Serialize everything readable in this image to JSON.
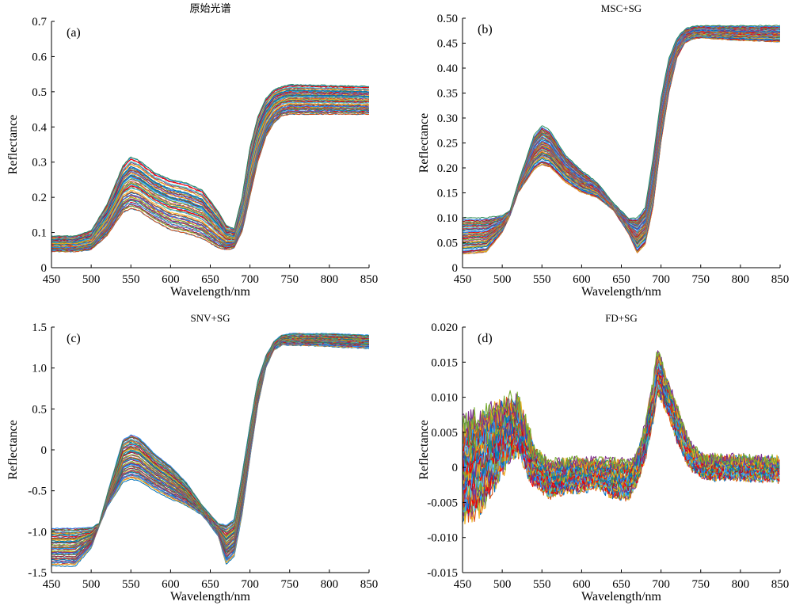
{
  "palette": [
    "#0072BD",
    "#D95319",
    "#EDB120",
    "#7E2F8E",
    "#77AC30",
    "#4DBEEE",
    "#A2142F",
    "#FF0000",
    "#1E90FF",
    "#2E8B57"
  ],
  "chart_data": [
    {
      "type": "line",
      "title": "原始光谱",
      "label": "(a)",
      "xlabel": "Wavelength/nm",
      "ylabel": "Reflectance",
      "xlim": [
        450,
        850
      ],
      "ylim": [
        0,
        0.7
      ],
      "xticks": [
        "450",
        "500",
        "550",
        "600",
        "650",
        "700",
        "750",
        "800",
        "850"
      ],
      "yticks": [
        "0",
        "0.1",
        "0.2",
        "0.3",
        "0.4",
        "0.5",
        "0.6",
        "0.7"
      ],
      "series_count": 60,
      "noise": 0.0015,
      "envelope": {
        "x": [
          450,
          480,
          500,
          520,
          540,
          550,
          560,
          580,
          600,
          620,
          640,
          660,
          670,
          680,
          690,
          700,
          710,
          720,
          730,
          740,
          750,
          800,
          850
        ],
        "low": [
          0.045,
          0.045,
          0.05,
          0.09,
          0.155,
          0.165,
          0.16,
          0.13,
          0.105,
          0.095,
          0.08,
          0.055,
          0.05,
          0.055,
          0.1,
          0.2,
          0.3,
          0.37,
          0.41,
          0.43,
          0.435,
          0.435,
          0.435
        ],
        "high": [
          0.09,
          0.09,
          0.105,
          0.18,
          0.29,
          0.315,
          0.305,
          0.27,
          0.25,
          0.24,
          0.22,
          0.16,
          0.12,
          0.11,
          0.2,
          0.34,
          0.43,
          0.48,
          0.505,
          0.515,
          0.52,
          0.518,
          0.515
        ]
      }
    },
    {
      "type": "line",
      "title": "MSC+SG",
      "label": "(b)",
      "xlabel": "Wavelength/nm",
      "ylabel": "Reflectance",
      "xlim": [
        450,
        850
      ],
      "ylim": [
        0,
        0.5
      ],
      "xticks": [
        "450",
        "500",
        "550",
        "600",
        "650",
        "700",
        "750",
        "800",
        "850"
      ],
      "yticks": [
        "0",
        "0.05",
        "0.10",
        "0.15",
        "0.20",
        "0.25",
        "0.30",
        "0.35",
        "0.40",
        "0.45",
        "0.50"
      ],
      "series_count": 60,
      "noise": 0.001,
      "envelope": {
        "x": [
          450,
          480,
          500,
          510,
          520,
          540,
          550,
          560,
          580,
          600,
          620,
          640,
          660,
          670,
          680,
          690,
          700,
          710,
          720,
          730,
          740,
          750,
          800,
          850
        ],
        "low": [
          0.025,
          0.03,
          0.07,
          0.105,
          0.15,
          0.195,
          0.205,
          0.2,
          0.17,
          0.15,
          0.14,
          0.115,
          0.065,
          0.028,
          0.045,
          0.12,
          0.25,
          0.35,
          0.42,
          0.45,
          0.458,
          0.46,
          0.455,
          0.452
        ],
        "high": [
          0.1,
          0.1,
          0.105,
          0.115,
          0.17,
          0.265,
          0.285,
          0.275,
          0.225,
          0.195,
          0.17,
          0.13,
          0.098,
          0.1,
          0.12,
          0.22,
          0.34,
          0.42,
          0.46,
          0.478,
          0.484,
          0.485,
          0.485,
          0.485
        ]
      }
    },
    {
      "type": "line",
      "title": "SNV+SG",
      "label": "(c)",
      "xlabel": "Wavelength/nm",
      "ylabel": "Reflectance",
      "xlim": [
        450,
        850
      ],
      "ylim": [
        -1.5,
        1.5
      ],
      "xticks": [
        "450",
        "500",
        "550",
        "600",
        "650",
        "700",
        "750",
        "800",
        "850"
      ],
      "yticks": [
        "-1.5",
        "-1.0",
        "-0.5",
        "0",
        "0.5",
        "1.0",
        "1.5"
      ],
      "series_count": 60,
      "noise": 0.006,
      "envelope": {
        "x": [
          450,
          480,
          500,
          510,
          520,
          540,
          550,
          560,
          580,
          600,
          620,
          640,
          660,
          670,
          680,
          690,
          700,
          710,
          720,
          730,
          740,
          750,
          800,
          850
        ],
        "low": [
          -1.42,
          -1.42,
          -1.2,
          -0.93,
          -0.7,
          -0.4,
          -0.36,
          -0.38,
          -0.5,
          -0.6,
          -0.68,
          -0.8,
          -1.05,
          -1.4,
          -1.3,
          -0.8,
          -0.1,
          0.55,
          1.0,
          1.22,
          1.28,
          1.28,
          1.26,
          1.24
        ],
        "high": [
          -0.96,
          -0.96,
          -0.95,
          -0.9,
          -0.55,
          0.12,
          0.18,
          0.15,
          -0.05,
          -0.2,
          -0.4,
          -0.68,
          -0.9,
          -0.92,
          -0.85,
          -0.3,
          0.3,
          0.85,
          1.15,
          1.32,
          1.4,
          1.42,
          1.42,
          1.4
        ]
      }
    },
    {
      "type": "line",
      "title": "FD+SG",
      "label": "(d)",
      "xlabel": "Wavelength/nm",
      "ylabel": "Reflectance",
      "xlim": [
        450,
        850
      ],
      "ylim": [
        -0.015,
        0.02
      ],
      "xticks": [
        "450",
        "500",
        "550",
        "600",
        "650",
        "700",
        "750",
        "800",
        "850"
      ],
      "yticks": [
        "-0.015",
        "-0.010",
        "-0.005",
        "0",
        "0.005",
        "0.010",
        "0.015",
        "0.020"
      ],
      "series_count": 45,
      "noise": 0.0009,
      "envelope": {
        "x": [
          450,
          470,
          490,
          510,
          520,
          530,
          540,
          560,
          580,
          600,
          620,
          640,
          660,
          670,
          680,
          690,
          695,
          700,
          710,
          720,
          730,
          740,
          750,
          760,
          780,
          800,
          850
        ],
        "low": [
          -0.007,
          -0.006,
          -0.002,
          0.002,
          0.003,
          0.001,
          -0.002,
          -0.004,
          -0.003,
          -0.003,
          -0.0025,
          -0.004,
          -0.004,
          -0.002,
          0.0015,
          0.007,
          0.0105,
          0.01,
          0.0075,
          0.004,
          0.0015,
          0.0,
          -0.0008,
          -0.0012,
          -0.0012,
          -0.0012,
          -0.0015
        ],
        "high": [
          0.006,
          0.007,
          0.008,
          0.009,
          0.009,
          0.0055,
          0.0025,
          0.0005,
          0.0008,
          0.0008,
          0.0008,
          0.0008,
          0.0005,
          0.0015,
          0.006,
          0.012,
          0.016,
          0.0155,
          0.0115,
          0.0085,
          0.005,
          0.0025,
          0.0015,
          0.0012,
          0.0012,
          0.0012,
          0.001
        ]
      }
    }
  ]
}
